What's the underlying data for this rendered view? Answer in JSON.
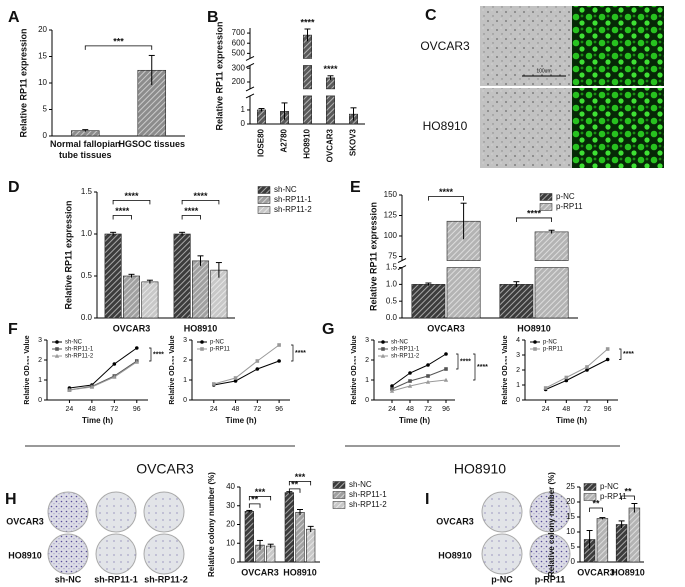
{
  "panels": [
    "A",
    "B",
    "C",
    "D",
    "E",
    "F",
    "G",
    "H",
    "I"
  ],
  "micrographs": {
    "rows": [
      "OVCAR3",
      "HO8910"
    ],
    "scale": "100um"
  },
  "sections": [
    "OVCAR3",
    "HO8910"
  ],
  "colony_h": {
    "rows": [
      "OVCAR3",
      "HO8910"
    ],
    "cols": [
      "sh-NC",
      "sh-RP11-1",
      "sh-RP11-2"
    ]
  },
  "colony_i": {
    "rows": [
      "OVCAR3",
      "HO8910"
    ],
    "cols": [
      "p-NC",
      "p-RP11"
    ]
  },
  "chart_data": [
    {
      "type": "bar",
      "ylabel": "Relative RP11 expression",
      "categories": [
        "Normal fallopian tube tissues",
        "HGSOC tissues"
      ],
      "values": [
        1.0,
        12.4
      ],
      "errors": [
        0.2,
        2.8
      ],
      "color": "#8c8c8c",
      "ylim": [
        0,
        20
      ],
      "yticks": [
        0,
        5,
        10,
        15,
        20
      ],
      "annotations": [
        "***"
      ]
    },
    {
      "type": "bar",
      "ylabel": "Relative RP11 expression",
      "categories": [
        "IOSE80",
        "A2780",
        "HO8910",
        "OVCAR3",
        "SKOV3"
      ],
      "values": [
        1.0,
        0.9,
        680,
        230,
        0.7
      ],
      "errors": [
        0.1,
        0.6,
        60,
        15,
        0.45
      ],
      "color": "#5a5a5a",
      "ysegments": [
        {
          "ylim": [
            0,
            2
          ],
          "yticks": [
            0,
            1
          ]
        },
        {
          "ylim": [
            150,
            320
          ],
          "yticks": [
            200,
            300
          ]
        },
        {
          "ylim": [
            450,
            750
          ],
          "yticks": [
            500,
            600,
            700
          ]
        }
      ],
      "annotations": [
        "****",
        "****"
      ]
    },
    {
      "type": "bar",
      "ylabel": "Relative RP11 expression",
      "categories": [
        "OVCAR3",
        "HO8910"
      ],
      "series": [
        {
          "name": "sh-NC",
          "color": "#3c3c3c",
          "values": [
            1.0,
            1.0
          ],
          "errors": [
            0.02,
            0.02
          ]
        },
        {
          "name": "sh-RP11-1",
          "color": "#a0a0a0",
          "values": [
            0.5,
            0.68
          ],
          "errors": [
            0.02,
            0.06
          ]
        },
        {
          "name": "sh-RP11-2",
          "color": "#c8c8c8",
          "values": [
            0.43,
            0.57
          ],
          "errors": [
            0.02,
            0.09
          ]
        }
      ],
      "ylim": [
        0,
        1.5
      ],
      "yticks": [
        {
          "value": 0,
          "label": "0.0"
        },
        0.5,
        {
          "value": 1,
          "label": "1.0"
        },
        1.5
      ],
      "annotations": [
        "****",
        "****",
        "****",
        "****"
      ]
    },
    {
      "type": "bar",
      "ylabel": "Relative RP11 expression",
      "categories": [
        "OVCAR3",
        "HO8910"
      ],
      "series": [
        {
          "name": "p-NC",
          "color": "#3c3c3c",
          "values": [
            1.0,
            1.0
          ],
          "errors": [
            0.04,
            0.08
          ]
        },
        {
          "name": "p-RP11",
          "color": "#b4b4b4",
          "values": [
            118,
            105
          ],
          "errors": [
            22,
            2
          ]
        }
      ],
      "ysegments": [
        {
          "ylim": [
            0,
            1.5
          ],
          "yticks": [
            {
              "value": 0,
              "label": "0.0"
            },
            0.5,
            {
              "value": 1,
              "label": "1.0"
            },
            1.5
          ]
        },
        {
          "ylim": [
            70,
            150
          ],
          "yticks": [
            75,
            100,
            125,
            150
          ]
        }
      ],
      "annotations": [
        "****",
        "****"
      ]
    },
    {
      "type": "line",
      "xlabel": "Time (h)",
      "ylabel": "Relative OD₄₅₀ Value",
      "x": [
        24,
        48,
        72,
        96
      ],
      "xlim": [
        0,
        108
      ],
      "xticks": [
        24,
        48,
        72,
        96
      ],
      "ylim": [
        0,
        3
      ],
      "yticks": [
        0,
        1,
        2,
        3
      ],
      "series": [
        {
          "name": "sh-NC",
          "color": "#000000",
          "values": [
            0.6,
            0.75,
            1.8,
            2.6
          ]
        },
        {
          "name": "sh-RP11-1",
          "color": "#555555",
          "values": [
            0.5,
            0.68,
            1.2,
            1.95
          ]
        },
        {
          "name": "sh-RP11-2",
          "color": "#999999",
          "values": [
            0.5,
            0.65,
            1.15,
            1.9
          ]
        }
      ],
      "annotations": [
        "****"
      ]
    },
    {
      "type": "line",
      "xlabel": "Time (h)",
      "ylabel": "Relative OD₄₅₀ Value",
      "x": [
        24,
        48,
        72,
        96
      ],
      "xlim": [
        0,
        108
      ],
      "xticks": [
        24,
        48,
        72,
        96
      ],
      "ylim": [
        0,
        3
      ],
      "yticks": [
        0,
        1,
        2,
        3
      ],
      "series": [
        {
          "name": "p-NC",
          "color": "#000000",
          "values": [
            0.75,
            0.95,
            1.55,
            1.95
          ]
        },
        {
          "name": "p-RP11",
          "color": "#999999",
          "values": [
            0.8,
            1.1,
            1.95,
            2.75
          ]
        }
      ],
      "annotations": [
        "****"
      ]
    },
    {
      "type": "line",
      "xlabel": "Time (h)",
      "ylabel": "Relative OD₄₅₀ Value",
      "x": [
        24,
        48,
        72,
        96
      ],
      "xlim": [
        0,
        108
      ],
      "xticks": [
        24,
        48,
        72,
        96
      ],
      "ylim": [
        0,
        3
      ],
      "yticks": [
        0,
        1,
        2,
        3
      ],
      "series": [
        {
          "name": "sh-NC",
          "color": "#000000",
          "values": [
            0.7,
            1.35,
            1.75,
            2.3
          ]
        },
        {
          "name": "sh-RP11-1",
          "color": "#555555",
          "values": [
            0.55,
            0.95,
            1.2,
            1.55
          ]
        },
        {
          "name": "sh-RP11-2",
          "color": "#999999",
          "values": [
            0.45,
            0.7,
            0.9,
            1.0
          ]
        }
      ],
      "annotations": [
        "****",
        "****"
      ]
    },
    {
      "type": "line",
      "xlabel": "Time (h)",
      "ylabel": "Relative OD₄₅₀ Value",
      "x": [
        24,
        48,
        72,
        96
      ],
      "xlim": [
        0,
        108
      ],
      "xticks": [
        24,
        48,
        72,
        96
      ],
      "ylim": [
        0,
        4
      ],
      "yticks": [
        0,
        1,
        2,
        3,
        4
      ],
      "series": [
        {
          "name": "p-NC",
          "color": "#000000",
          "values": [
            0.7,
            1.3,
            2.0,
            2.7
          ]
        },
        {
          "name": "p-RP11",
          "color": "#999999",
          "values": [
            0.8,
            1.5,
            2.2,
            3.4
          ]
        }
      ],
      "annotations": [
        "****"
      ]
    },
    {
      "type": "bar",
      "ylabel": "Relative colony number (%)",
      "categories": [
        "OVCAR3",
        "HO8910"
      ],
      "series": [
        {
          "name": "sh-NC",
          "color": "#3c3c3c",
          "values": [
            27,
            37
          ],
          "errors": [
            0.5,
            0.5
          ]
        },
        {
          "name": "sh-RP11-1",
          "color": "#a0a0a0",
          "values": [
            9,
            26.5
          ],
          "errors": [
            2.5,
            1.5
          ]
        },
        {
          "name": "sh-RP11-2",
          "color": "#c8c8c8",
          "values": [
            8.5,
            17.5
          ],
          "errors": [
            1,
            1.5
          ]
        }
      ],
      "ylim": [
        0,
        40
      ],
      "yticks": [
        0,
        10,
        20,
        30,
        40
      ],
      "annotations": [
        "**",
        "***",
        "**",
        "***"
      ]
    },
    {
      "type": "bar",
      "ylabel": "Relative colony number (%)",
      "categories": [
        "OVCAR3",
        "HO8910"
      ],
      "series": [
        {
          "name": "p-NC",
          "color": "#3c3c3c",
          "values": [
            7.5,
            12.5
          ],
          "errors": [
            3,
            1.2
          ]
        },
        {
          "name": "p-RP11",
          "color": "#b4b4b4",
          "values": [
            14.5,
            18
          ],
          "errors": [
            0.3,
            1.5
          ]
        }
      ],
      "ylim": [
        0,
        25
      ],
      "yticks": [
        0,
        5,
        10,
        15,
        20,
        25
      ],
      "annotations": [
        "**",
        "**"
      ]
    }
  ]
}
